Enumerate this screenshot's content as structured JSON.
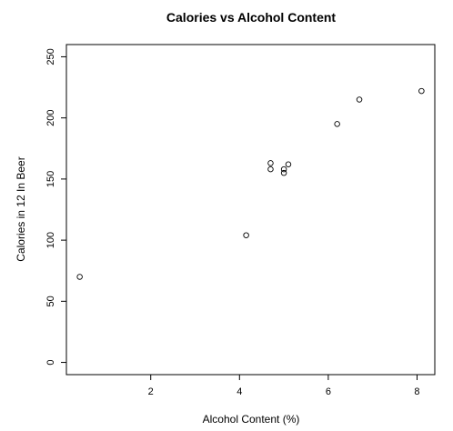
{
  "chart_data": {
    "type": "scatter",
    "title": "Calories vs Alcohol Content",
    "xlabel": "Alcohol Content (%)",
    "ylabel": "Calories in 12 In Beer",
    "xlim": [
      0.1,
      8.4
    ],
    "ylim": [
      -10,
      260
    ],
    "xticks": [
      2,
      4,
      6,
      8
    ],
    "yticks": [
      0,
      50,
      100,
      150,
      200,
      250
    ],
    "grid": false,
    "points": [
      {
        "x": 0.4,
        "y": 70
      },
      {
        "x": 4.15,
        "y": 104
      },
      {
        "x": 4.7,
        "y": 163
      },
      {
        "x": 4.7,
        "y": 158
      },
      {
        "x": 5.0,
        "y": 158
      },
      {
        "x": 5.0,
        "y": 155
      },
      {
        "x": 5.1,
        "y": 162
      },
      {
        "x": 6.2,
        "y": 195
      },
      {
        "x": 6.7,
        "y": 215
      },
      {
        "x": 8.1,
        "y": 222
      }
    ]
  }
}
